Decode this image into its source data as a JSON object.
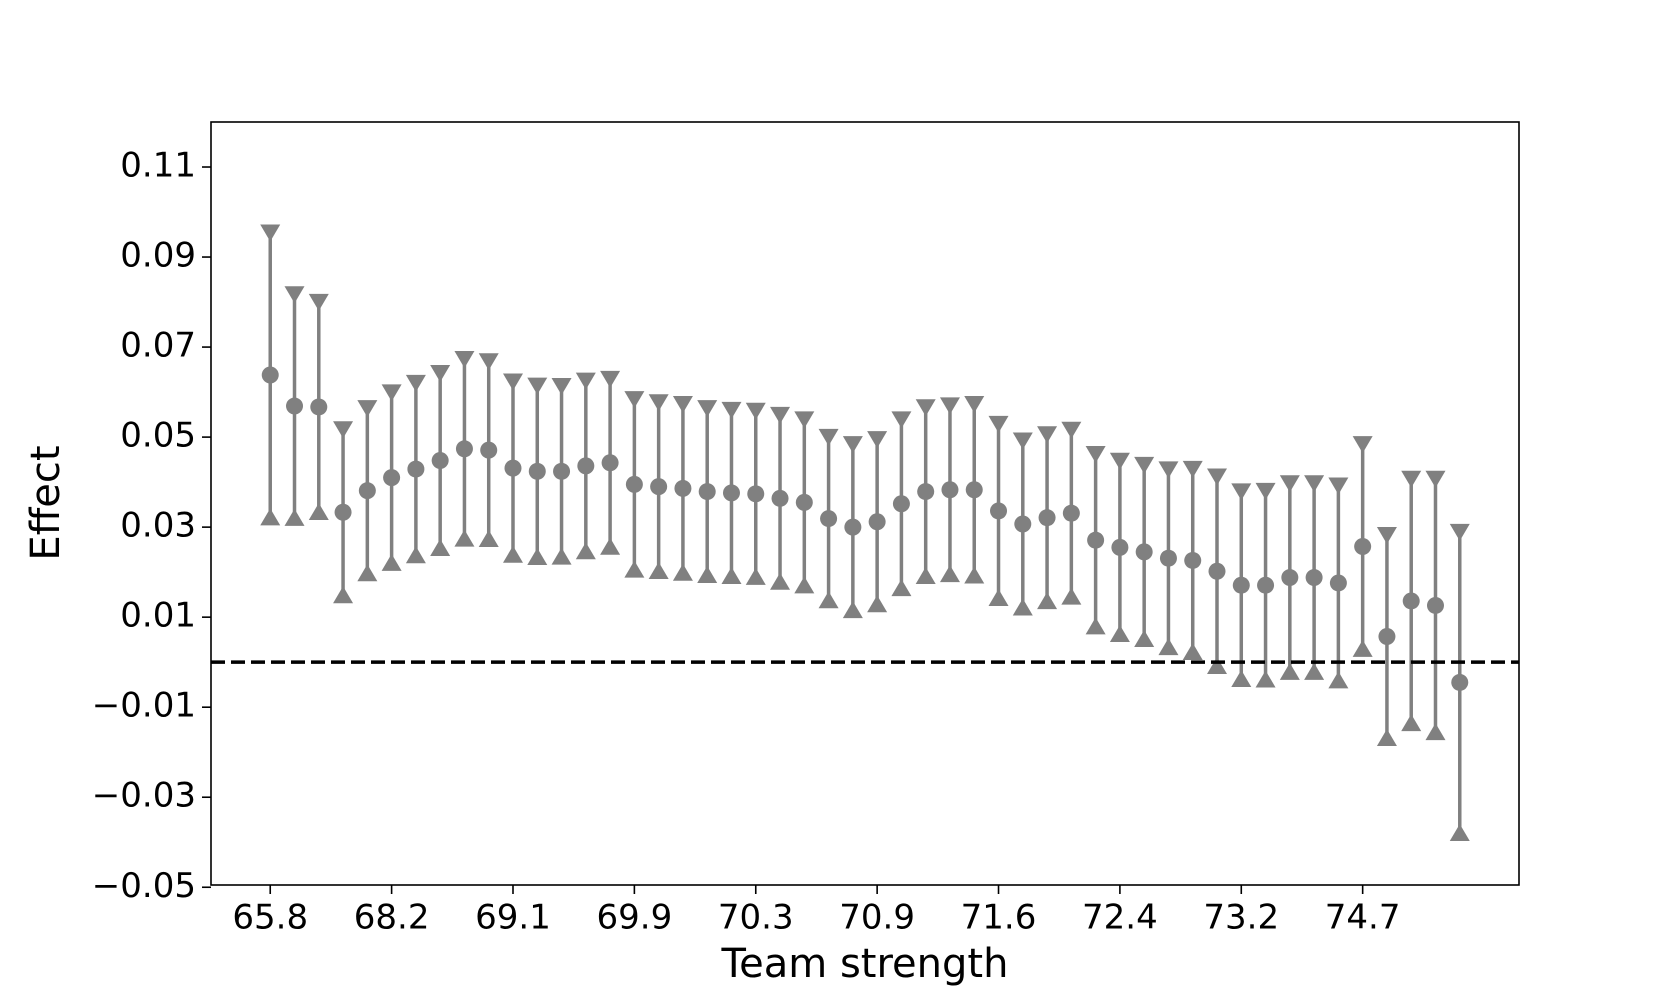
{
  "chart_data": {
    "type": "errorbar",
    "x_label": "Team strength",
    "y_label": "Effect",
    "categories": [
      "65.8",
      null,
      null,
      null,
      null,
      "68.2",
      null,
      null,
      null,
      null,
      "69.1",
      null,
      null,
      null,
      null,
      "69.9",
      null,
      null,
      null,
      null,
      "70.3",
      null,
      null,
      null,
      null,
      "70.9",
      null,
      null,
      null,
      null,
      "71.6",
      null,
      null,
      null,
      null,
      "72.4",
      null,
      null,
      null,
      null,
      "73.2",
      null,
      null,
      null,
      null,
      "74.7",
      null,
      null,
      null,
      null
    ],
    "values": [
      0.0638,
      0.0569,
      0.0567,
      0.0333,
      0.0381,
      0.041,
      0.0429,
      0.0448,
      0.0474,
      0.0471,
      0.0431,
      0.0424,
      0.0424,
      0.0436,
      0.0443,
      0.0395,
      0.039,
      0.0386,
      0.0379,
      0.0376,
      0.0374,
      0.0364,
      0.0355,
      0.0319,
      0.03,
      0.0312,
      0.0352,
      0.0379,
      0.0383,
      0.0383,
      0.0336,
      0.0307,
      0.0321,
      0.0331,
      0.0271,
      0.0255,
      0.0245,
      0.0231,
      0.0226,
      0.0202,
      0.0171,
      0.0171,
      0.0188,
      0.0188,
      0.0176,
      0.0257,
      0.0057,
      0.0136,
      0.0126,
      -0.0045
    ],
    "error": [
      0.0312,
      0.0244,
      0.0229,
      0.018,
      0.0179,
      0.0185,
      0.0187,
      0.019,
      0.0195,
      0.0193,
      0.0188,
      0.0186,
      0.0185,
      0.0185,
      0.0182,
      0.0185,
      0.0183,
      0.0183,
      0.0181,
      0.018,
      0.018,
      0.0181,
      0.018,
      0.0177,
      0.018,
      0.0179,
      0.0183,
      0.0183,
      0.0183,
      0.0186,
      0.0189,
      0.0181,
      0.0181,
      0.0181,
      0.0187,
      0.0188,
      0.0189,
      0.0193,
      0.0199,
      0.0206,
      0.0204,
      0.0205,
      0.0205,
      0.0205,
      0.0212,
      0.0223,
      0.0221,
      0.0267,
      0.0277,
      0.033
    ],
    "color": "#808080",
    "reference_line": {
      "value": 0,
      "color": "#000000",
      "dashed": true
    },
    "ylim": [
      -0.0495,
      0.12
    ],
    "yticks": [
      {
        "value": -0.05,
        "label": "−0.05"
      },
      {
        "value": -0.03,
        "label": "−0.03"
      },
      {
        "value": -0.01,
        "label": "−0.01"
      },
      0.01,
      0.03,
      0.05,
      0.07,
      0.09,
      0.11
    ],
    "grid": false
  }
}
